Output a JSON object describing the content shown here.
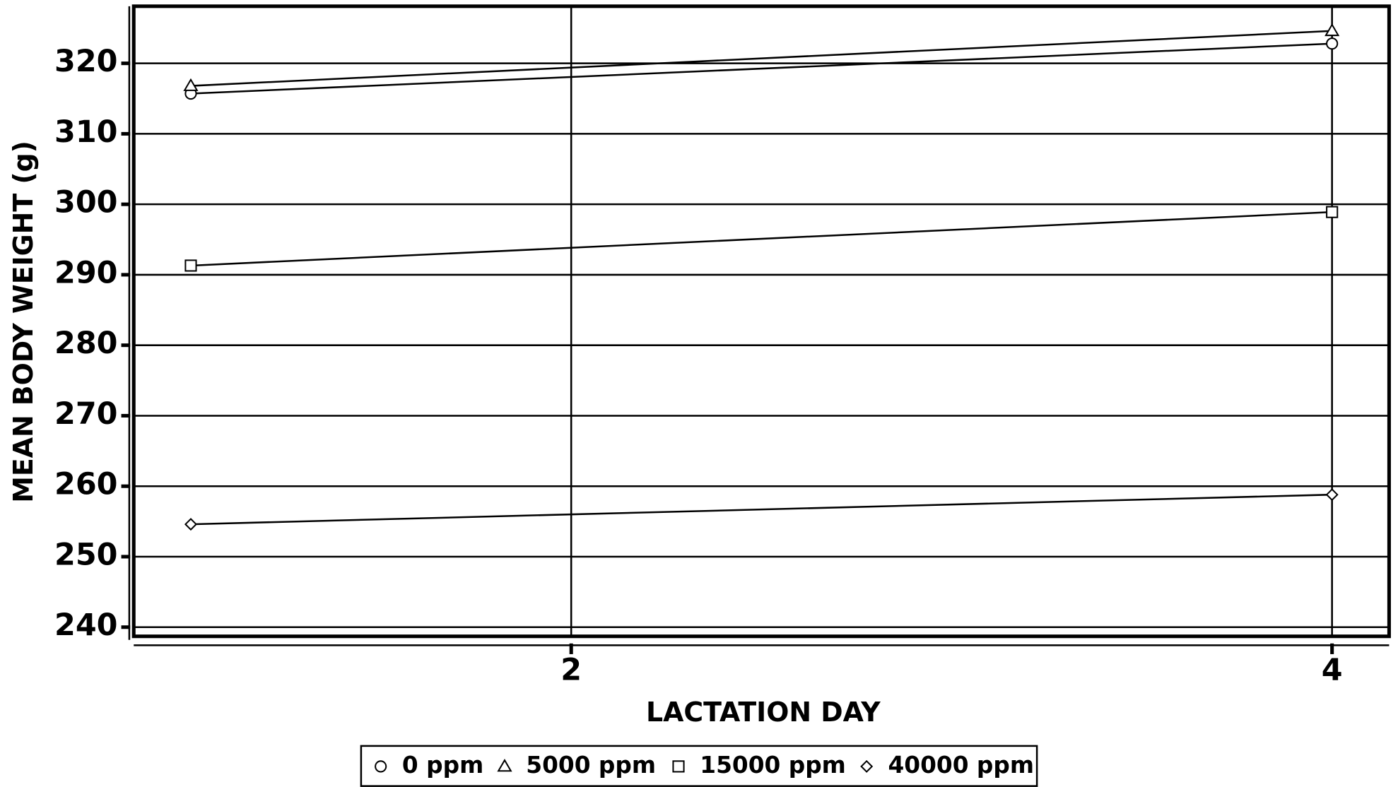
{
  "chart_data": {
    "type": "line",
    "x_label": "LACTATION DAY",
    "y_label": "MEAN BODY WEIGHT (g)",
    "x": [
      1,
      4
    ],
    "series": [
      {
        "name": "0 ppm",
        "color": "#000000",
        "marker": "circle",
        "values": [
          315.7,
          322.8
        ]
      },
      {
        "name": "5000 ppm",
        "color": "#000000",
        "marker": "triangle",
        "values": [
          316.8,
          324.6
        ]
      },
      {
        "name": "15000 ppm",
        "color": "#000000",
        "marker": "square",
        "values": [
          291.3,
          298.9
        ]
      },
      {
        "name": "40000 ppm",
        "color": "#000000",
        "marker": "diamond",
        "values": [
          254.6,
          258.8
        ]
      }
    ],
    "xlim": [
      0.85,
      4.15
    ],
    "xticks": [
      2,
      4
    ],
    "ylim": [
      238.7,
      328.1
    ],
    "yticks": [
      240,
      250,
      260,
      270,
      280,
      290,
      300,
      310,
      320
    ],
    "grid": true,
    "legend": "bottom"
  }
}
